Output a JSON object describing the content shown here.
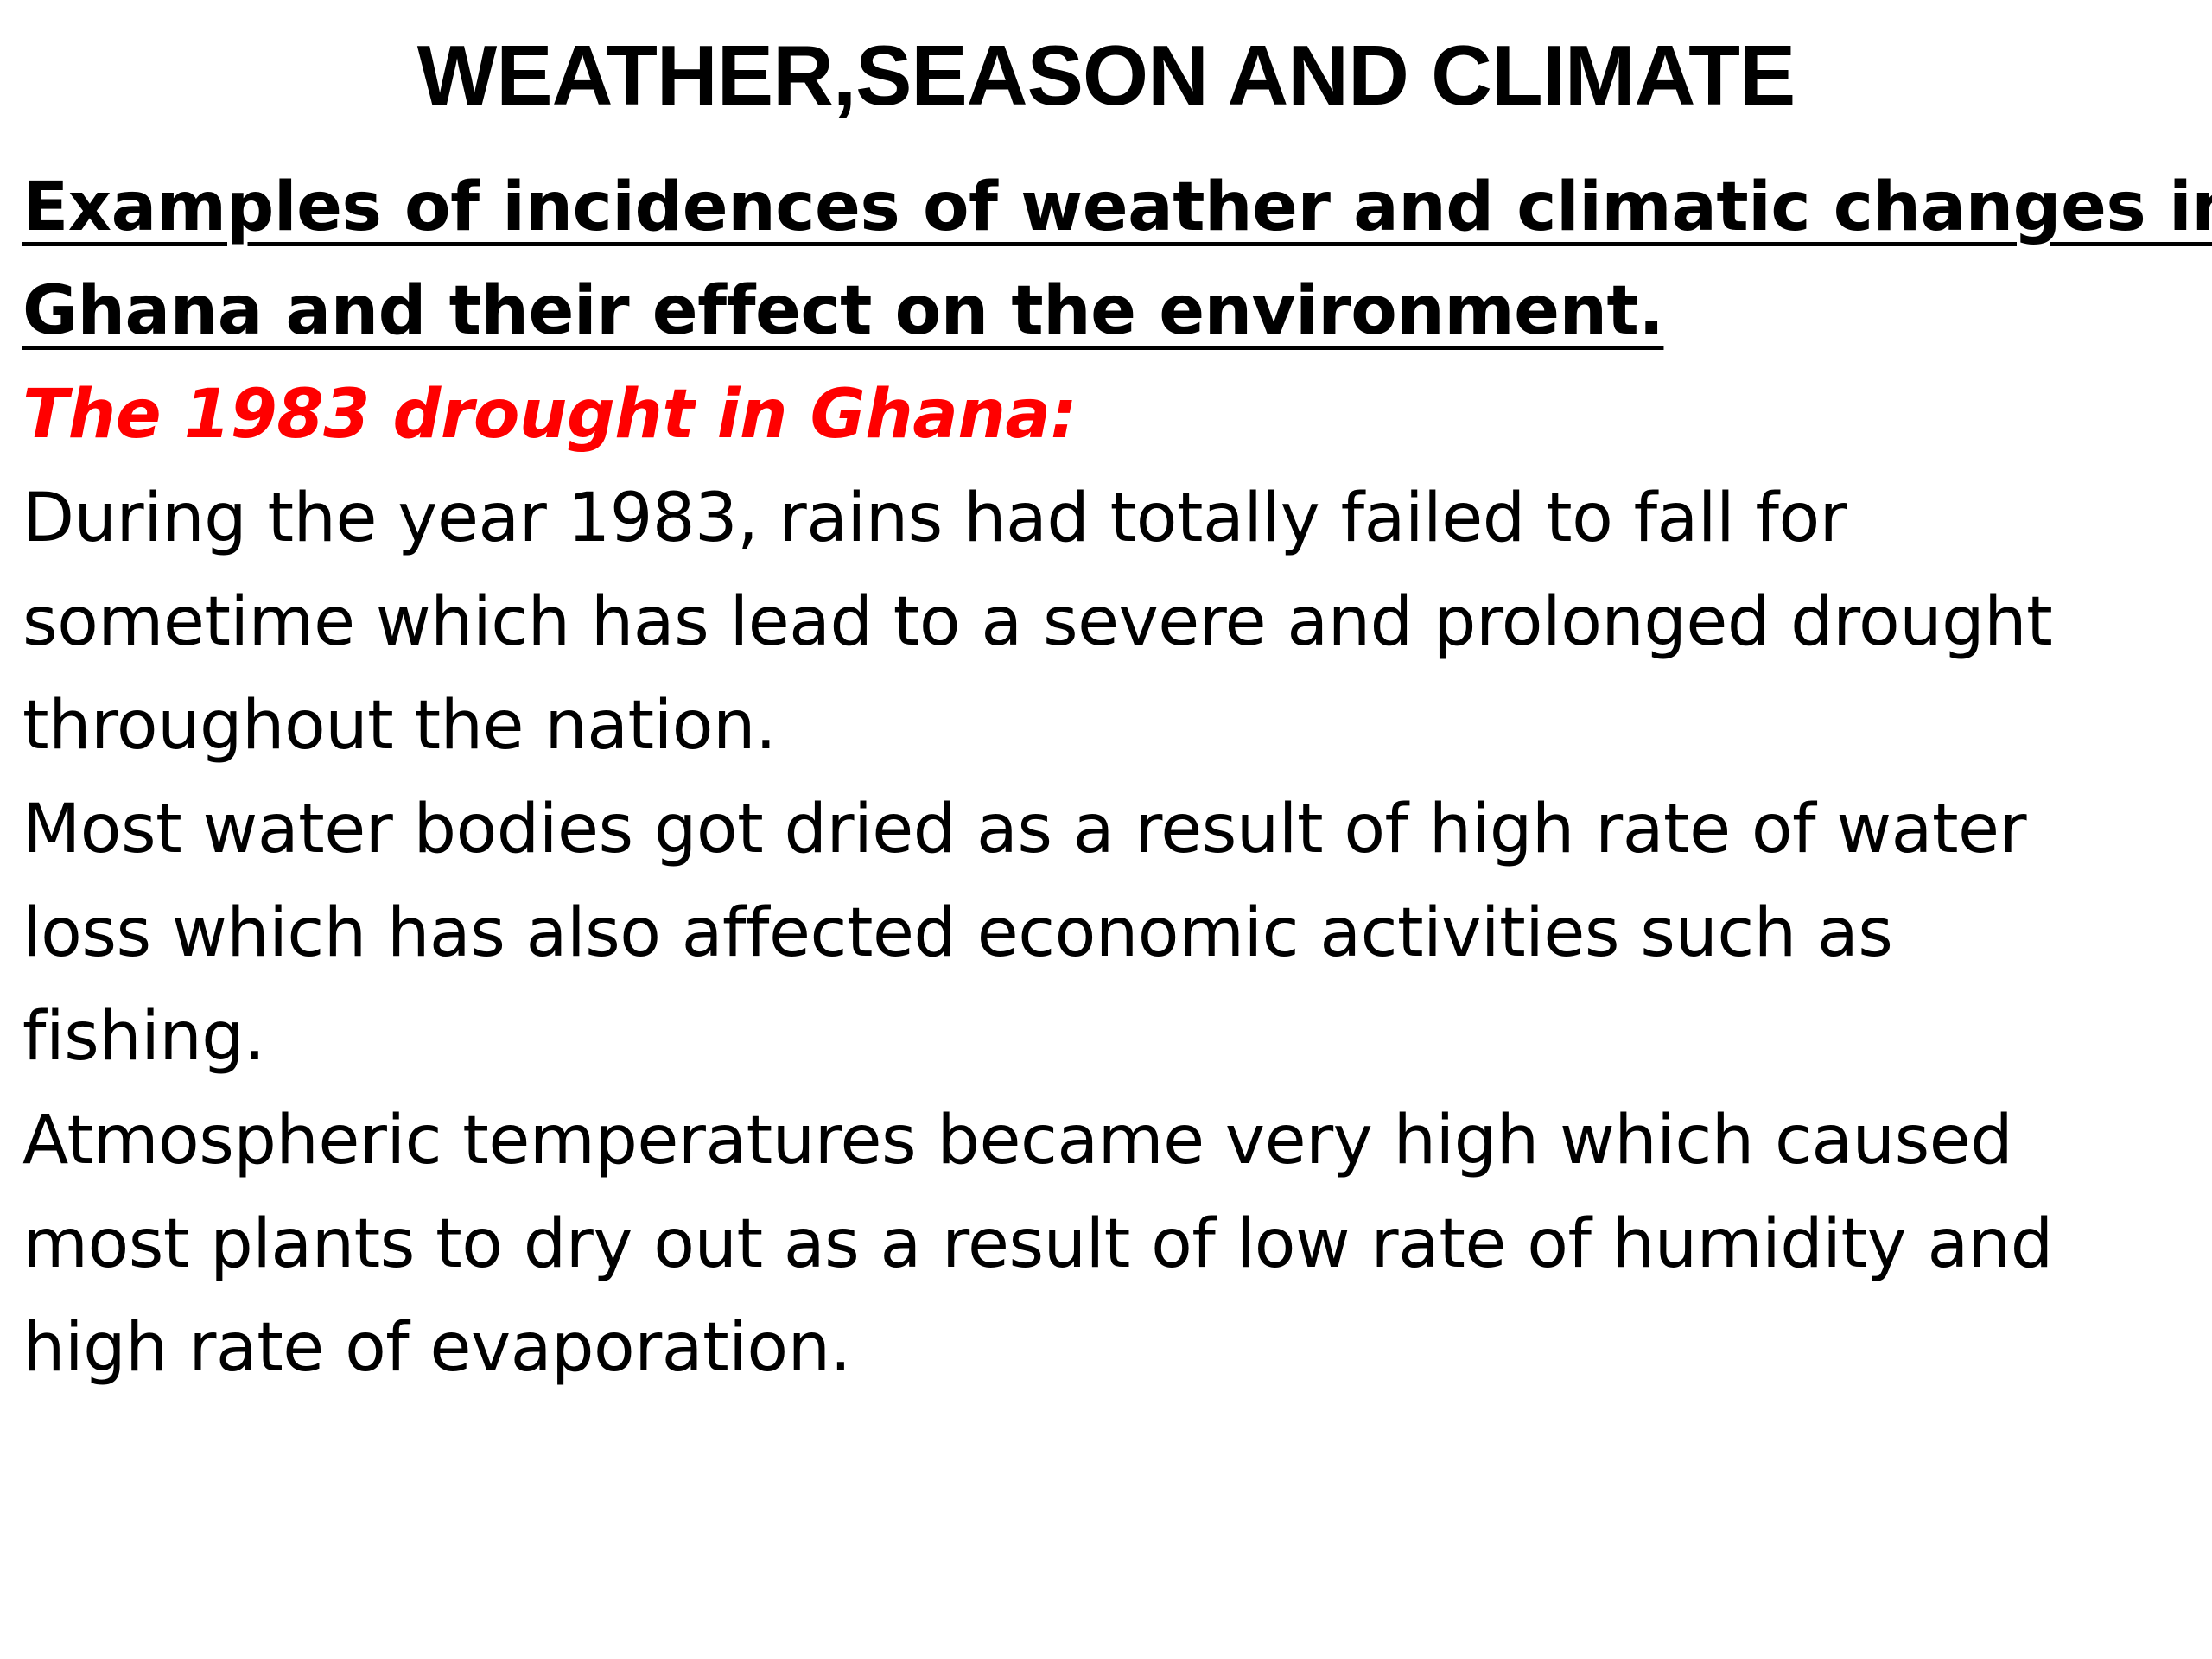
{
  "slide": {
    "title": "WEATHER,SEASON AND CLIMATE",
    "subheading_lines": [
      "Examples of incidences of weather and climatic changes in",
      "Ghana and their effect on the environment."
    ],
    "case_heading": "The 1983 drought in Ghana:",
    "case_heading_color": "#ff0000",
    "paragraphs": [
      {
        "lines": [
          "During the year 1983, rains had totally failed to fall for",
          "sometime which has lead to a severe and prolonged drought",
          "throughout the nation."
        ]
      },
      {
        "lines": [
          "Most water bodies got dried as a result of high rate of water",
          "loss which has also affected economic activities such as",
          "fishing."
        ]
      },
      {
        "lines": [
          "Atmospheric temperatures became very high which caused",
          "most plants to dry out as a result of low rate of humidity and",
          "high rate of evaporation."
        ]
      }
    ]
  }
}
